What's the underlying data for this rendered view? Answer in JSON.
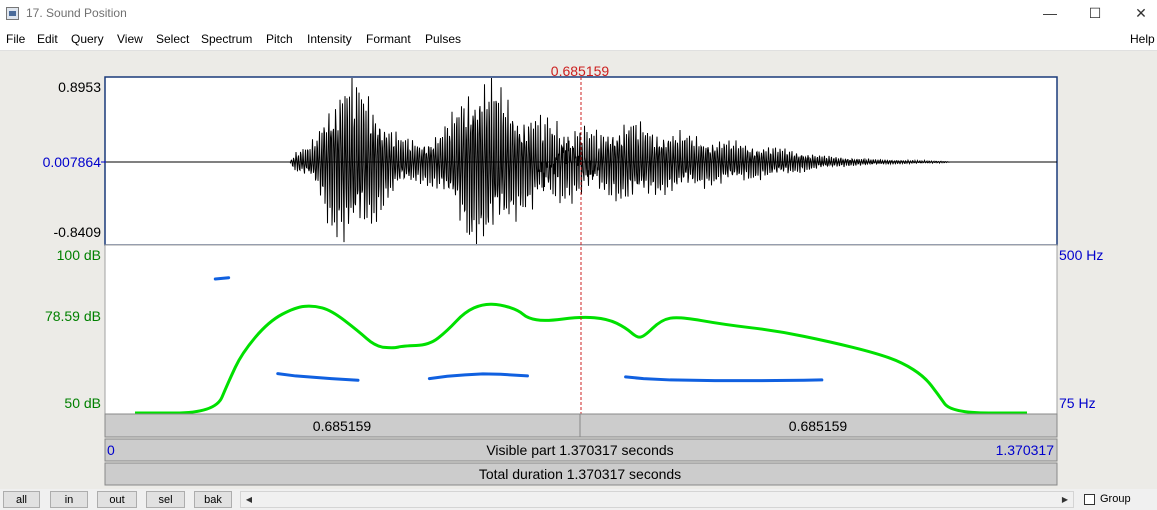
{
  "window": {
    "title": "17. Sound Position",
    "minimize_glyph": "—",
    "maximize_glyph": "☐",
    "close_glyph": "✕"
  },
  "menu": {
    "items": [
      "File",
      "Edit",
      "Query",
      "View",
      "Select",
      "Spectrum",
      "Pitch",
      "Intensity",
      "Formant",
      "Pulses"
    ],
    "help": "Help"
  },
  "cursor": {
    "time_label": "0.685159",
    "time": 0.685159
  },
  "waveform": {
    "max_label": "0.8953",
    "center_label": "0.007864",
    "min_label": "-0.8409",
    "max": 0.8953,
    "min": -0.8409
  },
  "analysis": {
    "intensity_top_label": "100 dB",
    "intensity_mid_label": "78.59 dB",
    "intensity_bottom_label": "50 dB",
    "pitch_top_label": "500 Hz",
    "pitch_bottom_label": "75 Hz",
    "intensity_range": [
      50,
      100
    ],
    "pitch_range": [
      75,
      500
    ],
    "intensity_curve": [
      [
        0.0,
        50
      ],
      [
        0.09,
        50
      ],
      [
        0.105,
        60
      ],
      [
        0.12,
        69
      ],
      [
        0.15,
        79
      ],
      [
        0.18,
        83.5
      ],
      [
        0.2,
        84
      ],
      [
        0.22,
        82.5
      ],
      [
        0.25,
        76
      ],
      [
        0.27,
        71
      ],
      [
        0.29,
        70.5
      ],
      [
        0.3,
        71.2
      ],
      [
        0.33,
        71.5
      ],
      [
        0.35,
        76
      ],
      [
        0.37,
        82
      ],
      [
        0.39,
        84.5
      ],
      [
        0.41,
        84.3
      ],
      [
        0.43,
        82.5
      ],
      [
        0.44,
        80
      ],
      [
        0.46,
        79
      ],
      [
        0.5,
        80.5
      ],
      [
        0.53,
        79.8
      ],
      [
        0.55,
        77
      ],
      [
        0.562,
        74
      ],
      [
        0.57,
        74
      ],
      [
        0.59,
        79.5
      ],
      [
        0.61,
        80.5
      ],
      [
        0.66,
        78
      ],
      [
        0.72,
        76
      ],
      [
        0.78,
        72.5
      ],
      [
        0.83,
        69
      ],
      [
        0.86,
        66
      ],
      [
        0.885,
        61.5
      ],
      [
        0.9,
        56
      ],
      [
        0.915,
        50
      ],
      [
        1.0,
        50
      ]
    ],
    "pitch_segments": [
      [
        [
          0.16,
          175
        ],
        [
          0.18,
          168
        ],
        [
          0.2,
          164
        ],
        [
          0.22,
          160
        ],
        [
          0.25,
          155
        ]
      ],
      [
        [
          0.09,
          458
        ],
        [
          0.105,
          462
        ]
      ],
      [
        [
          0.33,
          160
        ],
        [
          0.35,
          167
        ],
        [
          0.37,
          171
        ],
        [
          0.39,
          174
        ],
        [
          0.41,
          173
        ],
        [
          0.44,
          168
        ]
      ],
      [
        [
          0.55,
          165
        ],
        [
          0.57,
          160
        ],
        [
          0.6,
          156
        ],
        [
          0.65,
          154
        ],
        [
          0.7,
          154
        ],
        [
          0.75,
          155
        ],
        [
          0.77,
          156
        ]
      ]
    ]
  },
  "selection_bar": {
    "left_duration": "0.685159",
    "right_duration": "0.685159"
  },
  "visible_bar": {
    "start": "0",
    "label": "Visible part 1.370317 seconds",
    "end": "1.370317"
  },
  "total_bar": {
    "label": "Total duration 1.370317 seconds"
  },
  "colors": {
    "intensity": "#00e000",
    "pitch": "#1060e0",
    "cursor": "#cc2020",
    "axis_blue": "#0000cc",
    "axis_green": "#008000"
  },
  "bottom_buttons": {
    "all": "all",
    "in": "in",
    "out": "out",
    "sel": "sel",
    "bak": "bak",
    "group": "Group",
    "left_arrow": "◀",
    "right_arrow": "▶"
  }
}
